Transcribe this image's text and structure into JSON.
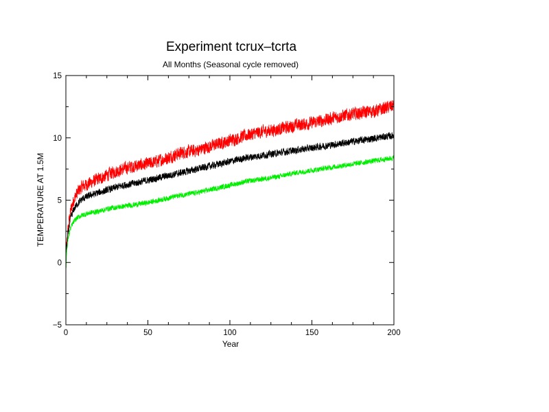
{
  "chart_data": {
    "type": "line",
    "title": "Experiment tcrux–tcrta",
    "subtitle": "All Months (Seasonal cycle removed)",
    "xlabel": "Year",
    "ylabel": "TEMPERATURE AT 1.5M",
    "xlim": [
      0,
      200
    ],
    "ylim": [
      -5,
      15
    ],
    "xticks": [
      "0",
      "50",
      "100",
      "150",
      "200"
    ],
    "yticks": [
      "−5",
      "0",
      "5",
      "10",
      "15"
    ],
    "xtick_values": [
      0,
      50,
      100,
      150,
      200
    ],
    "ytick_values": [
      -5,
      0,
      5,
      10,
      15
    ],
    "grid": false,
    "series": [
      {
        "color": "#ff0000",
        "x": [
          0,
          1,
          2,
          3,
          5,
          7,
          10,
          15,
          20,
          25,
          30,
          35,
          40,
          50,
          60,
          70,
          80,
          90,
          100,
          110,
          120,
          130,
          140,
          150,
          160,
          170,
          180,
          190,
          200
        ],
        "y": [
          0.3,
          2.3,
          3.4,
          4.2,
          5.1,
          5.6,
          6.1,
          6.4,
          6.7,
          7.0,
          7.3,
          7.5,
          7.7,
          7.9,
          8.3,
          8.8,
          9.0,
          9.4,
          9.8,
          10.2,
          10.5,
          10.7,
          11.0,
          11.2,
          11.5,
          11.8,
          12.0,
          12.2,
          12.6
        ],
        "noise": 0.45
      },
      {
        "color": "#000000",
        "x": [
          0,
          1,
          2,
          3,
          5,
          7,
          10,
          15,
          20,
          25,
          30,
          35,
          40,
          50,
          60,
          70,
          80,
          90,
          100,
          110,
          120,
          130,
          140,
          150,
          160,
          170,
          180,
          190,
          200
        ],
        "y": [
          0.3,
          1.9,
          2.9,
          3.6,
          4.3,
          4.7,
          5.1,
          5.4,
          5.6,
          5.8,
          6.0,
          6.2,
          6.3,
          6.6,
          6.9,
          7.2,
          7.5,
          7.8,
          8.1,
          8.4,
          8.6,
          8.8,
          9.0,
          9.2,
          9.4,
          9.6,
          9.8,
          10.0,
          10.2
        ],
        "noise": 0.25
      },
      {
        "color": "#00ee00",
        "x": [
          0,
          1,
          2,
          3,
          5,
          7,
          10,
          15,
          20,
          25,
          30,
          35,
          40,
          50,
          60,
          70,
          80,
          90,
          100,
          110,
          120,
          130,
          140,
          150,
          160,
          170,
          180,
          190,
          200
        ],
        "y": [
          0.2,
          1.6,
          2.3,
          2.8,
          3.3,
          3.6,
          3.8,
          4.0,
          4.1,
          4.3,
          4.4,
          4.5,
          4.6,
          4.8,
          5.1,
          5.4,
          5.6,
          5.9,
          6.2,
          6.5,
          6.7,
          6.9,
          7.2,
          7.4,
          7.6,
          7.8,
          8.0,
          8.2,
          8.4
        ],
        "noise": 0.18
      }
    ]
  }
}
